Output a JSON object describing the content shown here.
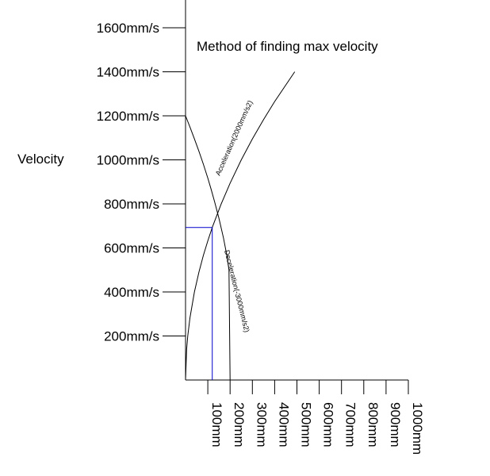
{
  "chart_data": {
    "type": "line",
    "title": "Method of finding max velocity",
    "ylabel": "Velocity",
    "xlabel": "",
    "xlim": [
      0,
      1000
    ],
    "ylim": [
      0,
      1650
    ],
    "x_ticks": [
      {
        "value": 100,
        "label": "100mm"
      },
      {
        "value": 200,
        "label": "200mm"
      },
      {
        "value": 300,
        "label": "300mm"
      },
      {
        "value": 400,
        "label": "400mm"
      },
      {
        "value": 500,
        "label": "500mm"
      },
      {
        "value": 600,
        "label": "600mm"
      },
      {
        "value": 700,
        "label": "700mm"
      },
      {
        "value": 800,
        "label": "800mm"
      },
      {
        "value": 900,
        "label": "900mm"
      },
      {
        "value": 1000,
        "label": "1000mm"
      }
    ],
    "y_ticks": [
      {
        "value": 200,
        "label": "200mm/s"
      },
      {
        "value": 400,
        "label": "400mm/s"
      },
      {
        "value": 600,
        "label": "600mm/s"
      },
      {
        "value": 800,
        "label": "800mm/s"
      },
      {
        "value": 1000,
        "label": "1000mm/s"
      },
      {
        "value": 1200,
        "label": "1200mm/s"
      },
      {
        "value": 1400,
        "label": "1400mm/s"
      },
      {
        "value": 1600,
        "label": "1600mm/s"
      }
    ],
    "series": [
      {
        "name": "Acceleration(2000mm/s2)",
        "color": "#000000",
        "x": [
          0,
          5,
          10,
          20,
          40,
          60,
          80,
          100,
          120,
          160,
          200,
          250,
          300,
          350,
          400,
          490
        ],
        "y": [
          0,
          141,
          200,
          283,
          400,
          490,
          566,
          632,
          693,
          800,
          894,
          1000,
          1095,
          1183,
          1265,
          1400
        ]
      },
      {
        "name": "Deceleration(-3000mm/s2)",
        "color": "#000000",
        "x": [
          0,
          20,
          40,
          60,
          80,
          100,
          115,
          130,
          150,
          170,
          185,
          195,
          200
        ],
        "y": [
          1200,
          1149,
          1095,
          1039,
          980,
          917,
          866,
          812,
          735,
          646,
          568,
          500,
          0
        ]
      }
    ],
    "intersection": {
      "x": 120,
      "y": 693,
      "color": "#0000cc"
    },
    "grid": false,
    "legend": "none"
  }
}
